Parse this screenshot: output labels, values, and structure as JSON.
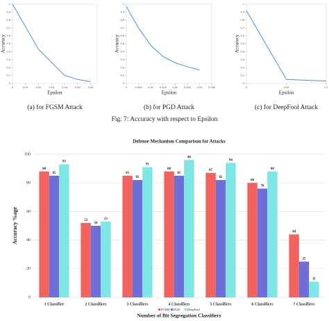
{
  "chart_data": [
    {
      "type": "line",
      "caption": "(a) for FGSM Attack",
      "xlabel": "Epsilon",
      "ylabel": "Accuracy",
      "x": [
        0,
        0.02,
        0.04,
        0.05,
        0.06
      ],
      "values": [
        1,
        0.43,
        0.1,
        0.05,
        0.02
      ],
      "color": "#4a90d9",
      "xlim": [
        0,
        0.065
      ],
      "xticks": [
        0,
        0.01,
        0.02,
        0.03,
        0.04,
        0.05,
        0.06
      ],
      "ylim": [
        0,
        1
      ],
      "yticks": [
        0,
        0.1,
        0.2,
        0.3,
        0.4,
        0.5,
        0.6,
        0.7,
        0.8,
        0.9,
        1
      ]
    },
    {
      "type": "line",
      "caption": "(b) for PGD Attack",
      "xlabel": "Epsilon",
      "ylabel": "Accuracy",
      "x": [
        0,
        0.005,
        0.01,
        0.015,
        0.02,
        0.025,
        0.03
      ],
      "values": [
        0.97,
        0.7,
        0.48,
        0.34,
        0.26,
        0.21,
        0.17
      ],
      "color": "#4a90d9",
      "xlim": [
        0,
        0.035
      ],
      "xticks": [
        0,
        0.005,
        0.01,
        0.015,
        0.02,
        0.025,
        0.03,
        0.035
      ],
      "ylim": [
        0,
        1
      ],
      "yticks": [
        0,
        0.1,
        0.2,
        0.3,
        0.4,
        0.5,
        0.6,
        0.7,
        0.8,
        0.9,
        1
      ]
    },
    {
      "type": "line",
      "caption": "(c) for DeepFool Attack",
      "xlabel": "Epsilon",
      "ylabel": "Accuracy",
      "x": [
        0,
        0.05,
        0.075,
        0.1
      ],
      "values": [
        0.92,
        0.05,
        0.04,
        0.03
      ],
      "color": "#4a90d9",
      "xlim": [
        0,
        0.1
      ],
      "xticks": [
        0,
        0.05,
        0.1
      ],
      "ylim": [
        0,
        1
      ],
      "yticks": [
        0,
        0.1,
        0.2,
        0.3,
        0.4,
        0.5,
        0.6,
        0.7,
        0.8,
        0.9,
        1
      ]
    },
    {
      "type": "bar",
      "title": "Defense Mechanism Comparison for Attacks",
      "xlabel": "Number of  Bit Segregation Classifiers",
      "ylabel": "Accuracy %age",
      "categories": [
        "1 Classifier",
        "2 Classifiers",
        "3 Classifiers",
        "4 Classifiers",
        "5 Classifiers",
        "6 Classifiers",
        "7 Classifiers"
      ],
      "series": [
        {
          "name": "FGSM",
          "color": "#f2625f",
          "values": [
            88,
            52,
            85,
            88,
            87,
            80,
            44
          ]
        },
        {
          "name": "PGD",
          "color": "#6d6ed8",
          "values": [
            85,
            50,
            82,
            85,
            82,
            76,
            25
          ]
        },
        {
          "name": "DeepFool",
          "color": "#7fe6e6",
          "values": [
            93,
            53,
            91,
            96,
            94,
            88,
            11
          ]
        }
      ],
      "ylim": [
        0,
        100
      ],
      "yticks": [
        0,
        20,
        40,
        60,
        80,
        100
      ],
      "grid": true,
      "legend": "bottom"
    }
  ],
  "figure_caption": "Fig. 7: Accuracy with respect to Epsilon"
}
